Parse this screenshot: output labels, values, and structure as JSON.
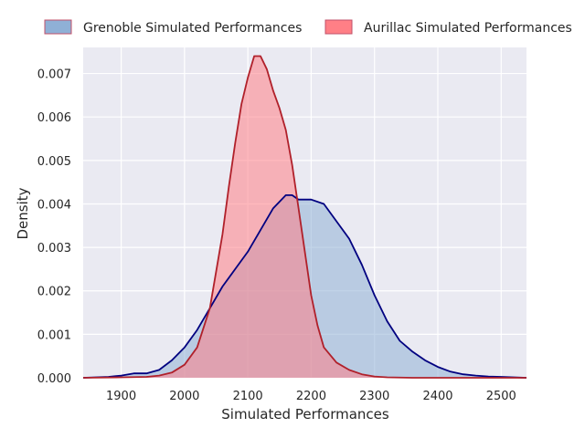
{
  "chart_data": {
    "type": "area",
    "xlabel": "Simulated Performances",
    "ylabel": "Density",
    "xlim": [
      1840,
      2540
    ],
    "ylim": [
      0,
      0.0076
    ],
    "xticks": [
      1900,
      2000,
      2100,
      2200,
      2300,
      2400,
      2500
    ],
    "xtick_labels": [
      "1900",
      "2000",
      "2100",
      "2200",
      "2300",
      "2400",
      "2500"
    ],
    "yticks": [
      0,
      0.001,
      0.002,
      0.003,
      0.004,
      0.005,
      0.006,
      0.007
    ],
    "ytick_labels": [
      "0.000",
      "0.001",
      "0.002",
      "0.003",
      "0.004",
      "0.005",
      "0.006",
      "0.007"
    ],
    "grid": true,
    "legend_position": "top, outside plot, two columns",
    "background_color": "#EAEAF2",
    "series": [
      {
        "name": "Grenoble Simulated Performances",
        "fill_color": "#8FB0D6",
        "line_color": "#000080",
        "x": [
          1840,
          1880,
          1900,
          1920,
          1940,
          1960,
          1980,
          2000,
          2020,
          2040,
          2060,
          2080,
          2100,
          2120,
          2140,
          2160,
          2170,
          2180,
          2200,
          2220,
          2240,
          2260,
          2280,
          2300,
          2320,
          2340,
          2360,
          2380,
          2400,
          2420,
          2440,
          2460,
          2480,
          2500,
          2520,
          2540
        ],
        "y": [
          0,
          2e-05,
          5e-05,
          0.0001,
          0.0001,
          0.00018,
          0.0004,
          0.0007,
          0.0011,
          0.0016,
          0.0021,
          0.0025,
          0.0029,
          0.0034,
          0.0039,
          0.0042,
          0.0042,
          0.0041,
          0.0041,
          0.004,
          0.0036,
          0.0032,
          0.0026,
          0.0019,
          0.0013,
          0.00085,
          0.0006,
          0.0004,
          0.00025,
          0.00014,
          8e-05,
          5e-05,
          3e-05,
          2e-05,
          1e-05,
          0
        ]
      },
      {
        "name": "Aurillac Simulated Performances",
        "fill_color": "#FF7F86",
        "line_color": "#B0202A",
        "x": [
          1840,
          1900,
          1940,
          1960,
          1980,
          2000,
          2020,
          2040,
          2060,
          2070,
          2080,
          2090,
          2100,
          2110,
          2120,
          2130,
          2140,
          2150,
          2160,
          2170,
          2180,
          2190,
          2200,
          2210,
          2220,
          2240,
          2260,
          2280,
          2300,
          2320,
          2360,
          2540
        ],
        "y": [
          0,
          1e-05,
          2e-05,
          5e-05,
          0.00012,
          0.0003,
          0.0007,
          0.0016,
          0.0033,
          0.0044,
          0.0054,
          0.0063,
          0.0069,
          0.0074,
          0.0074,
          0.0071,
          0.0066,
          0.0062,
          0.0057,
          0.0049,
          0.0039,
          0.0029,
          0.0019,
          0.0012,
          0.0007,
          0.00035,
          0.00018,
          8e-05,
          3e-05,
          1e-05,
          0,
          0
        ]
      }
    ]
  }
}
